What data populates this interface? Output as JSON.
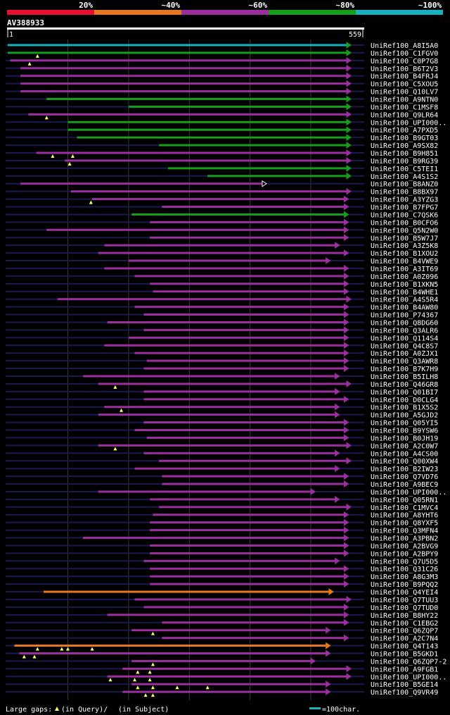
{
  "chart_data": {
    "type": "alignment-overview",
    "query_id": "AV388933",
    "query_start": 1,
    "query_end": 559,
    "identity_scale": [
      {
        "label": "20%",
        "color": "#e8102e"
      },
      {
        "label": "~40%",
        "color": "#e87722"
      },
      {
        "label": "~60%",
        "color": "#9b2fa0"
      },
      {
        "label": "~80%",
        "color": "#159e1a"
      },
      {
        "label": "~100%",
        "color": "#18b2bf"
      }
    ],
    "legend_text": "Large gaps:",
    "legend_query": "(in Query)/",
    "legend_subject": "(in Subject)",
    "scale_text": "=100char.",
    "colors": {
      "cyan": "#18b2bf",
      "green": "#159e1a",
      "purple": "#9b2fa0",
      "orange": "#e87722",
      "thin": "#1a1a50",
      "grid": "#3a3a3a",
      "tri": "#ffff66"
    },
    "hits": [
      {
        "label": "UniRef100_A8I5A0",
        "q": [
          1,
          559
        ],
        "c": "cyan",
        "dash": [
          0,
          559
        ],
        "arr": "g"
      },
      {
        "label": "UniRef100_C1FGV0",
        "q": [
          1,
          559
        ],
        "c": "green",
        "dash": [
          0,
          559
        ],
        "arr": "g",
        "tri": [
          50
        ]
      },
      {
        "label": "UniRef100_C0P7G8",
        "q": [
          5,
          559
        ],
        "c": "purple",
        "dash": [
          0,
          559
        ],
        "arr": "p",
        "tri": [
          37
        ]
      },
      {
        "label": "UniRef100_B6T2V3",
        "q": [
          22,
          559
        ],
        "c": "purple",
        "dash": [
          0,
          559
        ],
        "arr": "p"
      },
      {
        "label": "UniRef100_B4FRJ4",
        "q": [
          22,
          559
        ],
        "c": "purple",
        "dash": [
          0,
          559
        ],
        "arr": "p"
      },
      {
        "label": "UniRef100_C5XOU5",
        "q": [
          22,
          559
        ],
        "c": "purple",
        "dash": [
          0,
          559
        ],
        "arr": "p"
      },
      {
        "label": "UniRef100_Q10LV7",
        "q": [
          22,
          559
        ],
        "c": "purple",
        "dash": [
          0,
          559
        ],
        "arr": "p"
      },
      {
        "label": "UniRef100_A9NTN0",
        "q": [
          65,
          559
        ],
        "c": "green",
        "dash": [
          0,
          559
        ],
        "arr": "g"
      },
      {
        "label": "UniRef100_C1MSF8",
        "q": [
          200,
          559
        ],
        "c": "green",
        "dash": [
          0,
          559
        ],
        "arr": "g"
      },
      {
        "label": "UniRef100_Q9LR64",
        "q": [
          35,
          559
        ],
        "c": "purple",
        "dash": [
          0,
          559
        ],
        "arr": "p",
        "tri": [
          65
        ]
      },
      {
        "label": "UniRef100_UPI000..",
        "q": [
          100,
          559
        ],
        "c": "green",
        "dash": [
          0,
          559
        ],
        "arr": "g"
      },
      {
        "label": "UniRef100_A7PXD5",
        "q": [
          100,
          559
        ],
        "c": "green",
        "dash": [
          0,
          559
        ],
        "arr": "g"
      },
      {
        "label": "UniRef100_B9GT03",
        "q": [
          115,
          559
        ],
        "c": "green",
        "dash": [
          0,
          559
        ],
        "arr": "g"
      },
      {
        "label": "UniRef100_A9SX82",
        "q": [
          250,
          559
        ],
        "c": "green",
        "dash": [
          0,
          559
        ],
        "arr": "g"
      },
      {
        "label": "UniRef100_B9H851",
        "q": [
          48,
          559
        ],
        "c": "purple",
        "dash": [
          0,
          559
        ],
        "arr": "p",
        "tri": [
          75,
          108
        ]
      },
      {
        "label": "UniRef100_B9RG39",
        "q": [
          95,
          559
        ],
        "c": "purple",
        "dash": [
          0,
          559
        ],
        "arr": "p",
        "tri": [
          103
        ]
      },
      {
        "label": "UniRef100_C5TEI1",
        "q": [
          265,
          559
        ],
        "c": "green",
        "dash": [
          0,
          559
        ],
        "arr": "g"
      },
      {
        "label": "UniRef100_A4S1S2",
        "q": [
          330,
          559
        ],
        "c": "green",
        "dash": [
          0,
          559
        ],
        "arr": "g"
      },
      {
        "label": "UniRef100_B8ANZ0",
        "q": [
          22,
          420
        ],
        "c": "purple",
        "dash": [
          0,
          559
        ],
        "arr": "w"
      },
      {
        "label": "UniRef100_B8BX97",
        "q": [
          105,
          559
        ],
        "c": "purple",
        "dash": [
          0,
          559
        ],
        "arr": "p"
      },
      {
        "label": "UniRef100_A3YZG3",
        "q": [
          140,
          555
        ],
        "c": "purple",
        "dash": [
          0,
          559
        ],
        "arr": "p",
        "tri": [
          138
        ]
      },
      {
        "label": "UniRef100_B7FPG7",
        "q": [
          255,
          555
        ],
        "c": "purple",
        "dash": [
          0,
          559
        ],
        "arr": "p"
      },
      {
        "label": "UniRef100_C7QSK6",
        "q": [
          205,
          555
        ],
        "c": "green",
        "dash": [
          0,
          559
        ],
        "arr": "g"
      },
      {
        "label": "UniRef100_B0CFO6",
        "q": [
          235,
          555
        ],
        "c": "purple",
        "dash": [
          0,
          559
        ],
        "arr": "p"
      },
      {
        "label": "UniRef100_Q5N2W0",
        "q": [
          65,
          555
        ],
        "c": "purple",
        "dash": [
          0,
          559
        ],
        "arr": "p"
      },
      {
        "label": "UniRef100_B5W7J7",
        "q": [
          235,
          555
        ],
        "c": "purple",
        "dash": [
          0,
          559
        ],
        "arr": "p"
      },
      {
        "label": "UniRef100_A3Z5K8",
        "q": [
          160,
          540
        ],
        "c": "purple",
        "dash": [
          0,
          559
        ],
        "arr": "p"
      },
      {
        "label": "UniRef100_B1XOU2",
        "q": [
          150,
          555
        ],
        "c": "purple",
        "dash": [
          0,
          559
        ],
        "arr": "p"
      },
      {
        "label": "UniRef100_B4VWE9",
        "q": [
          200,
          525
        ],
        "c": "purple",
        "dash": [
          0,
          559
        ],
        "arr": "p"
      },
      {
        "label": "UniRef100_A3IT69",
        "q": [
          160,
          555
        ],
        "c": "purple",
        "dash": [
          0,
          559
        ],
        "arr": "p"
      },
      {
        "label": "UniRef100_A0Z096",
        "q": [
          210,
          555
        ],
        "c": "purple",
        "dash": [
          0,
          559
        ],
        "arr": "p"
      },
      {
        "label": "UniRef100_B1XKN5",
        "q": [
          235,
          555
        ],
        "c": "purple",
        "dash": [
          0,
          559
        ],
        "arr": "p"
      },
      {
        "label": "UniRef100_B4WHE1",
        "q": [
          240,
          555
        ],
        "c": "purple",
        "dash": [
          0,
          559
        ],
        "arr": "p"
      },
      {
        "label": "UniRef100_A4S5R4",
        "q": [
          83,
          559
        ],
        "c": "purple",
        "dash": [
          0,
          559
        ],
        "arr": "p"
      },
      {
        "label": "UniRef100_B4AW80",
        "q": [
          210,
          555
        ],
        "c": "purple",
        "dash": [
          0,
          559
        ],
        "arr": "p"
      },
      {
        "label": "UniRef100_P74367",
        "q": [
          225,
          555
        ],
        "c": "purple",
        "dash": [
          0,
          559
        ],
        "arr": "p"
      },
      {
        "label": "UniRef100_Q8DG60",
        "q": [
          165,
          555
        ],
        "c": "purple",
        "dash": [
          0,
          559
        ],
        "arr": "p"
      },
      {
        "label": "UniRef100_Q3ALR6",
        "q": [
          225,
          555
        ],
        "c": "purple",
        "dash": [
          0,
          559
        ],
        "arr": "p"
      },
      {
        "label": "UniRef100_Q114S4",
        "q": [
          200,
          555
        ],
        "c": "purple",
        "dash": [
          0,
          559
        ],
        "arr": "p"
      },
      {
        "label": "UniRef100_Q4C8S7",
        "q": [
          160,
          555
        ],
        "c": "purple",
        "dash": [
          0,
          559
        ],
        "arr": "p"
      },
      {
        "label": "UniRef100_A0ZJX1",
        "q": [
          210,
          555
        ],
        "c": "purple",
        "dash": [
          0,
          559
        ],
        "arr": "p"
      },
      {
        "label": "UniRef100_Q3AWR8",
        "q": [
          230,
          555
        ],
        "c": "purple",
        "dash": [
          0,
          559
        ],
        "arr": "p"
      },
      {
        "label": "UniRef100_B7K7H9",
        "q": [
          225,
          555
        ],
        "c": "purple",
        "dash": [
          0,
          559
        ],
        "arr": "p"
      },
      {
        "label": "UniRef100_B5ILH8",
        "q": [
          125,
          540
        ],
        "c": "purple",
        "dash": [
          0,
          559
        ],
        "arr": "p"
      },
      {
        "label": "UniRef100_Q46GR8",
        "q": [
          150,
          559
        ],
        "c": "purple",
        "dash": [
          0,
          559
        ],
        "arr": "p",
        "tri": [
          178
        ]
      },
      {
        "label": "UniRef100_Q01BI7",
        "q": [
          225,
          540
        ],
        "c": "purple",
        "dash": [
          0,
          559
        ],
        "arr": "p"
      },
      {
        "label": "UniRef100_D0CLG4",
        "q": [
          225,
          555
        ],
        "c": "purple",
        "dash": [
          0,
          559
        ],
        "arr": "p"
      },
      {
        "label": "UniRef100_B1X5S2",
        "q": [
          160,
          540
        ],
        "c": "purple",
        "dash": [
          0,
          559
        ],
        "arr": "p",
        "tri": [
          188
        ]
      },
      {
        "label": "UniRef100_A5GJD2",
        "q": [
          150,
          540
        ],
        "c": "purple",
        "dash": [
          0,
          559
        ],
        "arr": "p"
      },
      {
        "label": "UniRef100_Q05YI5",
        "q": [
          225,
          555
        ],
        "c": "purple",
        "dash": [
          0,
          559
        ],
        "arr": "p"
      },
      {
        "label": "UniRef100_B9YSW6",
        "q": [
          210,
          555
        ],
        "c": "purple",
        "dash": [
          0,
          559
        ],
        "arr": "p"
      },
      {
        "label": "UniRef100_B0JH19",
        "q": [
          230,
          555
        ],
        "c": "purple",
        "dash": [
          0,
          559
        ],
        "arr": "p"
      },
      {
        "label": "UniRef100_A2C0W7",
        "q": [
          150,
          559
        ],
        "c": "purple",
        "dash": [
          0,
          559
        ],
        "arr": "p",
        "tri": [
          178
        ]
      },
      {
        "label": "UniRef100_A4CS00",
        "q": [
          225,
          540
        ],
        "c": "purple",
        "dash": [
          0,
          559
        ],
        "arr": "p"
      },
      {
        "label": "UniRef100_Q00XW4",
        "q": [
          250,
          559
        ],
        "c": "purple",
        "dash": [
          0,
          559
        ],
        "arr": "p"
      },
      {
        "label": "UniRef100_B2IW23",
        "q": [
          210,
          540
        ],
        "c": "purple",
        "dash": [
          0,
          559
        ],
        "arr": "p"
      },
      {
        "label": "UniRef100_Q7VD76",
        "q": [
          255,
          555
        ],
        "c": "purple",
        "dash": [
          0,
          559
        ],
        "arr": "p"
      },
      {
        "label": "UniRef100_A9BEC9",
        "q": [
          255,
          555
        ],
        "c": "purple",
        "dash": [
          0,
          559
        ],
        "arr": "p"
      },
      {
        "label": "UniRef100_UPI000..",
        "q": [
          150,
          500
        ],
        "c": "purple",
        "dash": [
          0,
          559
        ],
        "arr": "p"
      },
      {
        "label": "UniRef100_Q05RN1",
        "q": [
          235,
          540
        ],
        "c": "purple",
        "dash": [
          0,
          559
        ],
        "arr": "p"
      },
      {
        "label": "UniRef100_C1MVC4",
        "q": [
          250,
          559
        ],
        "c": "purple",
        "dash": [
          0,
          559
        ],
        "arr": "p"
      },
      {
        "label": "UniRef100_A8YHT6",
        "q": [
          240,
          555
        ],
        "c": "purple",
        "dash": [
          0,
          559
        ],
        "arr": "p"
      },
      {
        "label": "UniRef100_Q8YXF5",
        "q": [
          235,
          555
        ],
        "c": "purple",
        "dash": [
          0,
          559
        ],
        "arr": "p"
      },
      {
        "label": "UniRef100_Q3MFN4",
        "q": [
          235,
          555
        ],
        "c": "purple",
        "dash": [
          0,
          559
        ],
        "arr": "p"
      },
      {
        "label": "UniRef100_A3PBN2",
        "q": [
          125,
          555
        ],
        "c": "purple",
        "dash": [
          0,
          559
        ],
        "arr": "p"
      },
      {
        "label": "UniRef100_A2BVG9",
        "q": [
          235,
          555
        ],
        "c": "purple",
        "dash": [
          0,
          559
        ],
        "arr": "p"
      },
      {
        "label": "UniRef100_A2BPY9",
        "q": [
          235,
          555
        ],
        "c": "purple",
        "dash": [
          0,
          559
        ],
        "arr": "p"
      },
      {
        "label": "UniRef100_Q7U5D5",
        "q": [
          225,
          540
        ],
        "c": "purple",
        "dash": [
          0,
          559
        ],
        "arr": "p"
      },
      {
        "label": "UniRef100_Q31C26",
        "q": [
          235,
          555
        ],
        "c": "purple",
        "dash": [
          0,
          559
        ],
        "arr": "p"
      },
      {
        "label": "UniRef100_A8G3M3",
        "q": [
          235,
          555
        ],
        "c": "purple",
        "dash": [
          0,
          559
        ],
        "arr": "p"
      },
      {
        "label": "UniRef100_B9PQQ2",
        "q": [
          235,
          555
        ],
        "c": "purple",
        "dash": [
          0,
          559
        ],
        "arr": "p"
      },
      {
        "label": "UniRef100_Q4YEI4",
        "q": [
          60,
          530
        ],
        "c": "orange",
        "dash": [
          0,
          559
        ],
        "arr": "o"
      },
      {
        "label": "UniRef100_Q7TUU3",
        "q": [
          210,
          559
        ],
        "c": "purple",
        "dash": [
          0,
          559
        ],
        "arr": "p"
      },
      {
        "label": "UniRef100_Q7TUD0",
        "q": [
          225,
          555
        ],
        "c": "purple",
        "dash": [
          0,
          559
        ],
        "arr": "p"
      },
      {
        "label": "UniRef100_B8HY22",
        "q": [
          165,
          555
        ],
        "c": "purple",
        "dash": [
          0,
          559
        ],
        "arr": "p"
      },
      {
        "label": "UniRef100_C1EBG2",
        "q": [
          255,
          555
        ],
        "c": "purple",
        "dash": [
          0,
          559
        ],
        "arr": "p"
      },
      {
        "label": "UniRef100_Q6ZQP7",
        "q": [
          205,
          525
        ],
        "c": "purple",
        "dash": [
          0,
          559
        ],
        "arr": "p",
        "tri": [
          240
        ]
      },
      {
        "label": "UniRef100_A2C7N4",
        "q": [
          255,
          555
        ],
        "c": "purple",
        "dash": [
          0,
          559
        ],
        "arr": "p"
      },
      {
        "label": "UniRef100_Q4T143",
        "q": [
          12,
          525
        ],
        "c": "orange",
        "dash": [
          0,
          559
        ],
        "arr": "o",
        "tri": [
          50,
          90,
          100,
          140
        ]
      },
      {
        "label": "UniRef100_B5GKD1",
        "q": [
          20,
          525
        ],
        "c": "purple",
        "dash": [
          0,
          559
        ],
        "arr": "p",
        "tri": [
          28,
          45
        ]
      },
      {
        "label": "UniRef100_Q6ZQP7-2",
        "q": [
          205,
          500
        ],
        "c": "purple",
        "dash": [
          0,
          559
        ],
        "arr": "p",
        "tri": [
          240
        ]
      },
      {
        "label": "UniRef100_A9FGB1",
        "q": [
          190,
          559
        ],
        "c": "purple",
        "dash": [
          0,
          559
        ],
        "arr": "p",
        "tri": [
          215,
          235
        ]
      },
      {
        "label": "UniRef100_UPI000..",
        "q": [
          165,
          559
        ],
        "c": "purple",
        "dash": [
          0,
          559
        ],
        "arr": "p",
        "tri": [
          170,
          210,
          235
        ]
      },
      {
        "label": "UniRef100_B5GE14",
        "q": [
          205,
          525
        ],
        "c": "purple",
        "dash": [
          0,
          559
        ],
        "arr": "p",
        "tri": [
          215,
          240,
          280,
          330
        ]
      },
      {
        "label": "UniRef100_Q9VR49",
        "q": [
          190,
          525
        ],
        "c": "purple",
        "dash": [
          0,
          559
        ],
        "arr": "p",
        "tri": [
          228,
          240
        ]
      }
    ]
  }
}
